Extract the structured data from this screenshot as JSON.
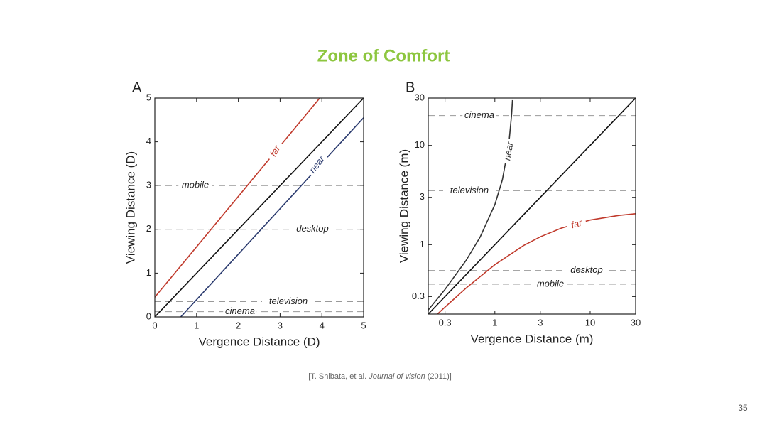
{
  "slide": {
    "title": "Zone of Comfort",
    "citation": [
      "[T. Shibata, et al. ",
      "Journal of vision",
      " (2011)]"
    ],
    "page_number": "35"
  },
  "chart_data": [
    {
      "type": "line",
      "panel": "A",
      "x_label": "Vergence Distance (D)",
      "y_label": "Viewing Distance (D)",
      "xlim": [
        0,
        5
      ],
      "ylim": [
        0,
        5
      ],
      "xticks": [
        0,
        1,
        2,
        3,
        4,
        5
      ],
      "yticks": [
        0,
        1,
        2,
        3,
        4,
        5
      ],
      "log": false,
      "series": [
        {
          "name": "far",
          "color": "#c0392b",
          "x": [
            0,
            3.95
          ],
          "y": [
            0.45,
            5
          ]
        },
        {
          "color": "#111111",
          "x": [
            0,
            5
          ],
          "y": [
            0,
            5
          ]
        },
        {
          "name": "near",
          "color": "#2a3a6e",
          "x": [
            0.62,
            5
          ],
          "y": [
            0,
            4.55
          ]
        }
      ],
      "reference_lines": [
        {
          "label": "mobile",
          "value": 3
        },
        {
          "label": "desktop",
          "value": 2
        },
        {
          "label": "television",
          "value": 0.35
        },
        {
          "label": "cinema",
          "value": 0.12
        }
      ]
    },
    {
      "type": "line",
      "panel": "B",
      "x_label": "Vergence Distance (m)",
      "y_label": "Viewing Distance (m)",
      "xlim": [
        0.2,
        30
      ],
      "ylim": [
        0.2,
        30
      ],
      "xticks": [
        0.3,
        1,
        3,
        10,
        30
      ],
      "yticks": [
        0.3,
        1,
        3,
        10,
        30
      ],
      "log": true,
      "series": [
        {
          "name": "near",
          "color": "#333333",
          "x": [
            0.2,
            0.3,
            0.5,
            0.7,
            1,
            1.2,
            1.4,
            1.5,
            1.53
          ],
          "y": [
            0.22,
            0.354,
            0.697,
            1.19,
            2.53,
            4.51,
            10.2,
            20.6,
            28.6
          ]
        },
        {
          "color": "#111111",
          "x": [
            0.2,
            30
          ],
          "y": [
            0.2,
            30
          ]
        },
        {
          "name": "far",
          "color": "#c0392b",
          "x": [
            0.25,
            0.3,
            0.5,
            1,
            2,
            3,
            5,
            10,
            20,
            30
          ],
          "y": [
            0.2,
            0.235,
            0.366,
            0.629,
            0.98,
            1.2,
            1.47,
            1.77,
            1.97,
            2.05
          ]
        }
      ],
      "reference_lines": [
        {
          "label": "cinema",
          "value": 20
        },
        {
          "label": "television",
          "value": 3.5
        },
        {
          "label": "desktop",
          "value": 0.55
        },
        {
          "label": "mobile",
          "value": 0.4
        }
      ]
    }
  ]
}
